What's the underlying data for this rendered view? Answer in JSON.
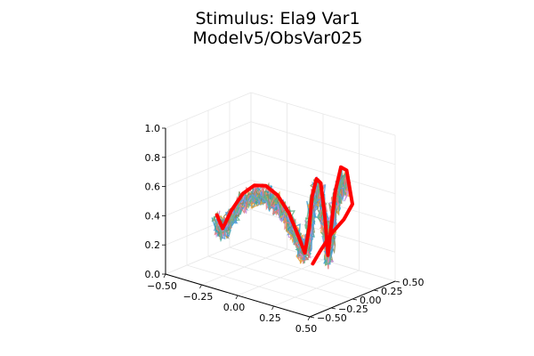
{
  "chart_data": {
    "type": "line",
    "title_lines": [
      "Stimulus: Ela9 Var1",
      "Modelv5/ObsVar025"
    ],
    "xlabel": "",
    "ylabel": "",
    "zlabel": "",
    "xlim": [
      -0.5,
      0.5
    ],
    "ylim": [
      -0.5,
      0.5
    ],
    "zlim": [
      0.0,
      1.0
    ],
    "x_ticks": [
      "−0.50",
      "−0.25",
      "0.00",
      "0.25",
      "0.50"
    ],
    "y_ticks": [
      "−0.50",
      "−0.25",
      "0.00",
      "0.25",
      "0.50"
    ],
    "z_ticks": [
      "0.0",
      "0.2",
      "0.4",
      "0.6",
      "0.8",
      "1.0"
    ],
    "x_tick_values": [
      -0.5,
      -0.25,
      0.0,
      0.25,
      0.5
    ],
    "y_tick_values": [
      -0.5,
      -0.25,
      0.0,
      0.25,
      0.5
    ],
    "z_tick_values": [
      0.0,
      0.2,
      0.4,
      0.6,
      0.8,
      1.0
    ],
    "grid": true,
    "legend": "none",
    "stimulus_series": {
      "color": "#ff0000",
      "points": [
        [
          -0.44,
          0.0,
          0.3
        ],
        [
          -0.4,
          0.0,
          0.22
        ],
        [
          -0.34,
          0.0,
          0.36
        ],
        [
          -0.26,
          0.0,
          0.5
        ],
        [
          -0.18,
          0.0,
          0.58
        ],
        [
          -0.1,
          0.0,
          0.6
        ],
        [
          -0.02,
          0.0,
          0.56
        ],
        [
          0.06,
          0.0,
          0.46
        ],
        [
          0.13,
          0.0,
          0.31
        ],
        [
          0.17,
          0.0,
          0.22
        ],
        [
          0.2,
          0.0,
          0.4
        ],
        [
          0.22,
          0.0,
          0.62
        ],
        [
          0.25,
          0.0,
          0.75
        ],
        [
          0.28,
          0.0,
          0.73
        ],
        [
          0.31,
          0.0,
          0.5
        ],
        [
          0.33,
          0.0,
          0.25
        ],
        [
          0.35,
          0.0,
          0.43
        ],
        [
          0.38,
          0.0,
          0.7
        ],
        [
          0.42,
          0.0,
          0.88
        ],
        [
          0.46,
          0.0,
          0.87
        ],
        [
          0.5,
          0.0,
          0.65
        ],
        [
          0.5,
          -0.1,
          0.57
        ],
        [
          0.48,
          -0.2,
          0.5
        ],
        [
          0.46,
          -0.3,
          0.4
        ],
        [
          0.45,
          -0.38,
          0.32
        ]
      ]
    },
    "trajectory_colors": [
      "#389fcc",
      "#3da49b",
      "#e6a23c",
      "#c98fdc",
      "#8b8b5a",
      "#e07b7b",
      "#5a9fdf",
      "#66b38a"
    ],
    "trajectory_count": 24
  }
}
